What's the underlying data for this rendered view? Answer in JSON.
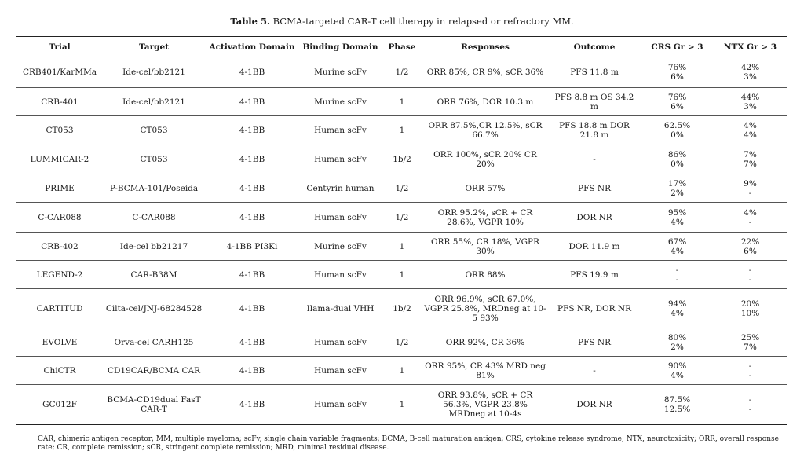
{
  "caption": {
    "label": "Table 5.",
    "text": " BCMA-targeted CAR-T cell therapy in relapsed or refractory MM."
  },
  "columns": [
    "Trial",
    "Target",
    "Activation Domain",
    "Binding Domain",
    "Phase",
    "Responses",
    "Outcome",
    "CRS Gr > 3",
    "NTX Gr > 3"
  ],
  "rows": [
    {
      "trial": "CRB401/KarMMa",
      "target": "Ide-cel/bb2121",
      "activation": "4-1BB",
      "binding": "Murine scFv",
      "phase": "1/2",
      "responses": "ORR 85%, CR 9%, sCR 36%",
      "outcome": "PFS 11.8 m",
      "crs": [
        "76%",
        "6%"
      ],
      "ntx": [
        "42%",
        "3%"
      ]
    },
    {
      "trial": "CRB-401",
      "target": "Ide-cel/bb2121",
      "activation": "4-1BB",
      "binding": "Murine scFv",
      "phase": "1",
      "responses": "ORR 76%, DOR 10.3 m",
      "outcome": "PFS 8.8 m OS 34.2 m",
      "crs": [
        "76%",
        "6%"
      ],
      "ntx": [
        "44%",
        "3%"
      ]
    },
    {
      "trial": "CT053",
      "target": "CT053",
      "activation": "4-1BB",
      "binding": "Human scFv",
      "phase": "1",
      "responses": "ORR 87.5%,CR 12.5%, sCR 66.7%",
      "outcome": "PFS 18.8 m DOR 21.8 m",
      "crs": [
        "62.5%",
        "0%"
      ],
      "ntx": [
        "4%",
        "4%"
      ]
    },
    {
      "trial": "LUMMICAR-2",
      "target": "CT053",
      "activation": "4-1BB",
      "binding": "Human scFv",
      "phase": "1b/2",
      "responses": "ORR 100%, sCR 20% CR 20%",
      "outcome": "-",
      "crs": [
        "86%",
        "0%"
      ],
      "ntx": [
        "7%",
        "7%"
      ]
    },
    {
      "trial": "PRIME",
      "target": "P-BCMA-101/Poseida",
      "activation": "4-1BB",
      "binding": "Centyrin human",
      "phase": "1/2",
      "responses": "ORR 57%",
      "outcome": "PFS NR",
      "crs": [
        "17%",
        "2%"
      ],
      "ntx": [
        "9%",
        "-"
      ]
    },
    {
      "trial": "C-CAR088",
      "target": "C-CAR088",
      "activation": "4-1BB",
      "binding": "Human scFv",
      "phase": "1/2",
      "responses": "ORR 95.2%, sCR + CR 28.6%, VGPR 10%",
      "outcome": "DOR NR",
      "crs": [
        "95%",
        "4%"
      ],
      "ntx": [
        "4%",
        "-"
      ]
    },
    {
      "trial": "CRB-402",
      "target": "Ide-cel bb21217",
      "activation": "4-1BB PI3Ki",
      "binding": "Murine scFv",
      "phase": "1",
      "responses": "ORR 55%, CR 18%, VGPR 30%",
      "outcome": "DOR 11.9 m",
      "crs": [
        "67%",
        "4%"
      ],
      "ntx": [
        "22%",
        "6%"
      ]
    },
    {
      "trial": "LEGEND-2",
      "target": "CAR-B38M",
      "activation": "4-1BB",
      "binding": "Human scFv",
      "phase": "1",
      "responses": "ORR 88%",
      "outcome": "PFS 19.9 m",
      "crs": [
        "-",
        "-"
      ],
      "ntx": [
        "-",
        "-"
      ]
    },
    {
      "trial": "CARTITUD",
      "target": "Cilta-cel/JNJ-68284528",
      "activation": "4-1BB",
      "binding": "Ilama-dual VHH",
      "phase": "1b/2",
      "responses": "ORR 96.9%, sCR 67.0%, VGPR 25.8%, MRDneg at 10-5 93%",
      "outcome": "PFS NR, DOR NR",
      "crs": [
        "94%",
        "4%"
      ],
      "ntx": [
        "20%",
        "10%"
      ]
    },
    {
      "trial": "EVOLVE",
      "target": "Orva-cel CARH125",
      "activation": "4-1BB",
      "binding": "Human scFv",
      "phase": "1/2",
      "responses": "ORR 92%, CR 36%",
      "outcome": "PFS NR",
      "crs": [
        "80%",
        "2%"
      ],
      "ntx": [
        "25%",
        "7%"
      ]
    },
    {
      "trial": "ChiCTR",
      "target": "CD19CAR/BCMA CAR",
      "activation": "4-1BB",
      "binding": "Human scFv",
      "phase": "1",
      "responses": "ORR 95%, CR 43% MRD neg 81%",
      "outcome": "-",
      "crs": [
        "90%",
        "4%"
      ],
      "ntx": [
        "-",
        "-"
      ]
    },
    {
      "trial": "GC012F",
      "target": "BCMA-CD19dual FasT CAR-T",
      "activation": "4-1BB",
      "binding": "Human scFv",
      "phase": "1",
      "responses": "ORR 93.8%, sCR + CR 56.3%, VGPR 23.8% MRDneg at 10-4s",
      "outcome": "DOR NR",
      "crs": [
        "87.5%",
        "12.5%"
      ],
      "ntx": [
        "-",
        "-"
      ]
    }
  ],
  "footnote": "CAR, chimeric antigen receptor; MM, multiple myeloma; scFv, single chain variable fragments; BCMA, B-cell maturation antigen; CRS, cytokine release syndrome; NTX, neurotoxicity; ORR, overall response rate; CR, complete remission; sCR, stringent complete remission; MRD, minimal residual disease."
}
